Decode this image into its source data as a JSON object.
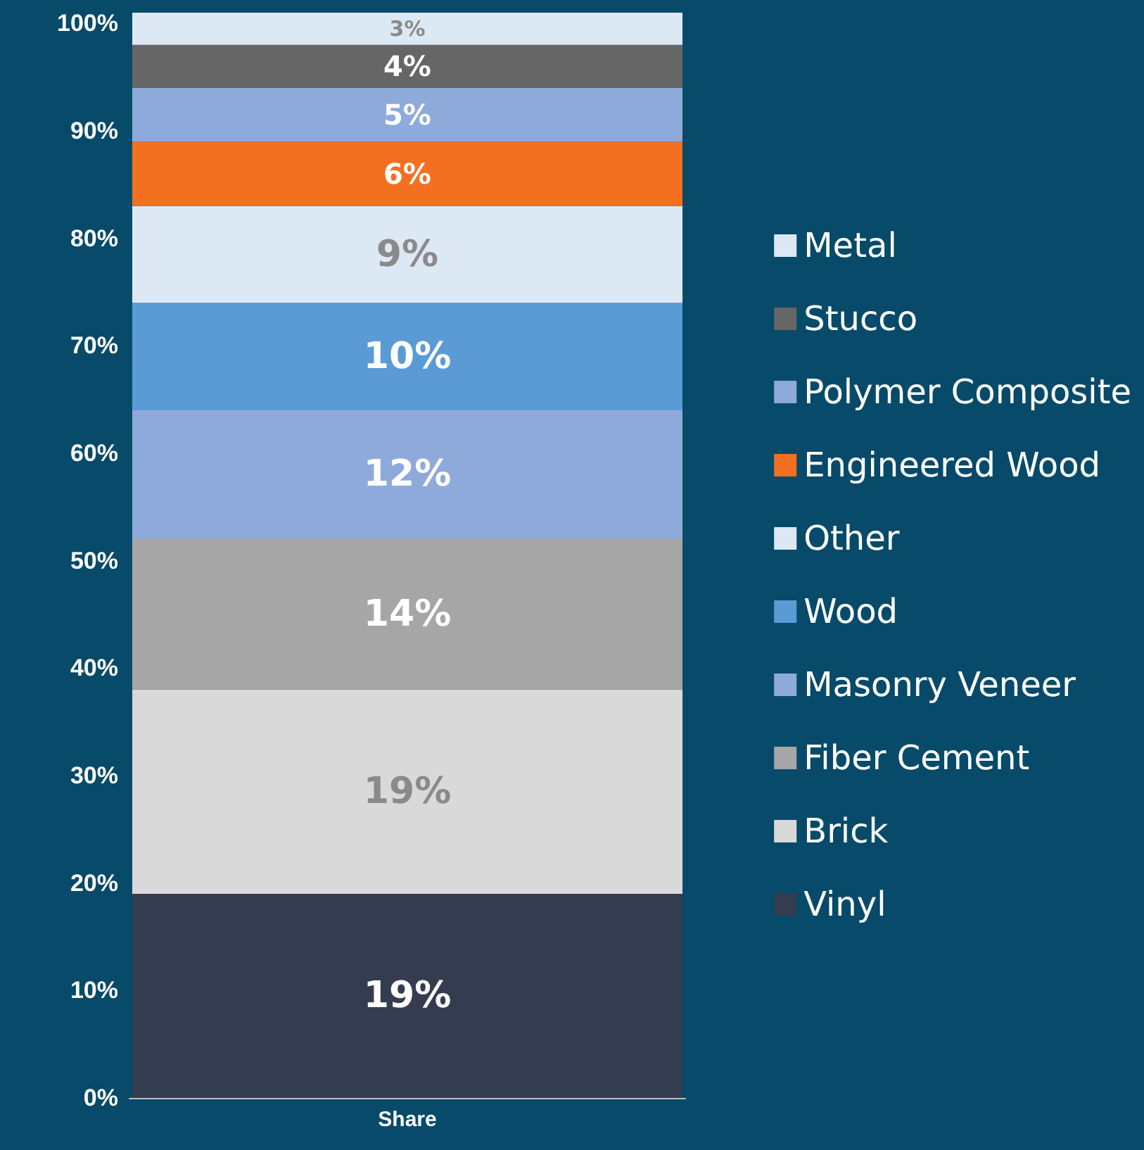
{
  "chart_data": {
    "type": "bar",
    "stacked": true,
    "categories": [
      "Share"
    ],
    "series": [
      {
        "name": "Vinyl",
        "color": "#333d4f",
        "values": [
          19
        ],
        "value_labels": [
          "19%"
        ]
      },
      {
        "name": "Brick",
        "color": "#d9d9d9",
        "values": [
          19
        ],
        "value_labels": [
          "19%"
        ]
      },
      {
        "name": "Fiber Cement",
        "color": "#a6a6a6",
        "values": [
          14
        ],
        "value_labels": [
          "14%"
        ]
      },
      {
        "name": "Masonry Veneer",
        "color": "#8eaadb",
        "values": [
          12
        ],
        "value_labels": [
          "12%"
        ]
      },
      {
        "name": "Wood",
        "color": "#5b9bd5",
        "values": [
          10
        ],
        "value_labels": [
          "10%"
        ]
      },
      {
        "name": "Other",
        "color": "#dde8f5",
        "values": [
          9
        ],
        "value_labels": [
          "9%"
        ]
      },
      {
        "name": "Engineered Wood",
        "color": "#f37021",
        "values": [
          6
        ],
        "value_labels": [
          "6%"
        ]
      },
      {
        "name": "Polymer Composite",
        "color": "#8eaadb",
        "values": [
          5
        ],
        "value_labels": [
          "5%"
        ]
      },
      {
        "name": "Stucco",
        "color": "#666666",
        "values": [
          4
        ],
        "value_labels": [
          "4%"
        ]
      },
      {
        "name": "Metal",
        "color": "#dde8f5",
        "values": [
          3
        ],
        "value_labels": [
          "3%"
        ]
      }
    ],
    "ylim": [
      0,
      101
    ],
    "yticks": [
      {
        "value": 0,
        "label": "0%"
      },
      {
        "value": 10,
        "label": "10%"
      },
      {
        "value": 20,
        "label": "20%"
      },
      {
        "value": 30,
        "label": "30%"
      },
      {
        "value": 40,
        "label": "40%"
      },
      {
        "value": 50,
        "label": "50%"
      },
      {
        "value": 60,
        "label": "60%"
      },
      {
        "value": 70,
        "label": "70%"
      },
      {
        "value": 80,
        "label": "80%"
      },
      {
        "value": 90,
        "label": "90%"
      },
      {
        "value": 100,
        "label": "100%"
      }
    ],
    "grid": false,
    "legend": "right"
  }
}
